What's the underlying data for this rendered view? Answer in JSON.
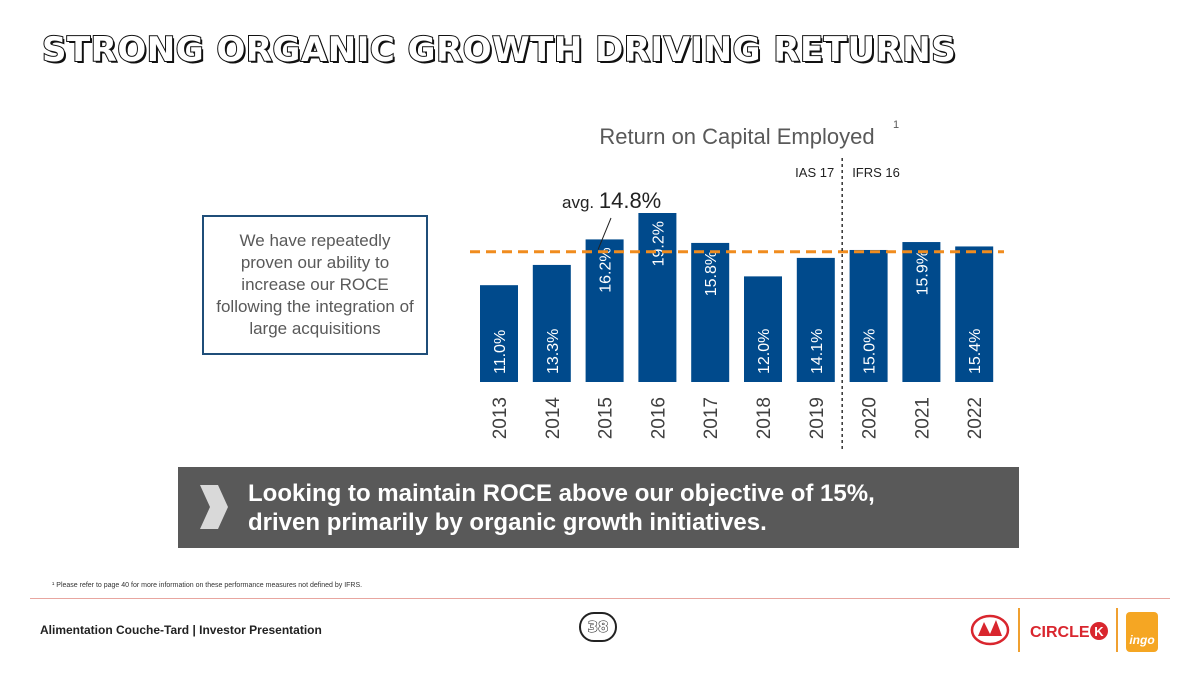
{
  "slide": {
    "title": "STRONG ORGANIC GROWTH DRIVING RETURNS",
    "callout_text": "We have repeatedly proven our ability to increase our ROCE following the integration of large acquisitions",
    "banner": {
      "line1": "Looking to maintain ROCE above our objective of 15%,",
      "line2": "driven primarily by organic growth initiatives."
    },
    "footnote": "¹ Please refer to page 40 for more information on these performance measures not defined by IFRS.",
    "footer_company": "Alimentation Couche-Tard | Investor Presentation",
    "page_number": "38",
    "logos": {
      "couche_tard_icon": "couche-tard-logo-icon",
      "circle_k_text": "CIRCLE",
      "circle_k_letter": "K",
      "ingo_text": "ingo"
    }
  },
  "chart_data": {
    "type": "bar",
    "title": "Return on Capital Employed",
    "title_superscript": "1",
    "categories": [
      "2013",
      "2014",
      "2015",
      "2016",
      "2017",
      "2018",
      "2019",
      "2020",
      "2021",
      "2022"
    ],
    "values": [
      11.0,
      13.3,
      16.2,
      19.2,
      15.8,
      12.0,
      14.1,
      15.0,
      15.9,
      15.4
    ],
    "value_labels": [
      "11.0%",
      "13.3%",
      "16.2%",
      "19.2%",
      "15.8%",
      "12.0%",
      "14.1%",
      "15.0%",
      "15.9%",
      "15.4%"
    ],
    "ylim": [
      0,
      19.2
    ],
    "average": {
      "value": 14.8,
      "prefix": "avg.",
      "label": "14.8%"
    },
    "divider": {
      "after_category": "2019",
      "left_label": "IAS 17",
      "right_label": "IFRS 16"
    },
    "xlabel": "",
    "ylabel": "",
    "grid": false,
    "legend": "none",
    "colors": {
      "bar": "#004a8c",
      "average_line": "#f08c1e",
      "divider": "#333333"
    }
  }
}
